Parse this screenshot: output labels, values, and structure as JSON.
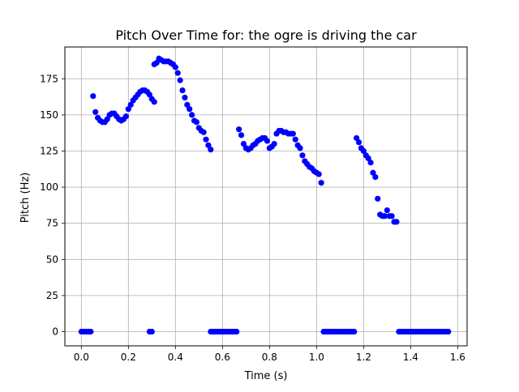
{
  "chart_data": {
    "type": "scatter",
    "title": "Pitch Over Time for: the ogre is driving the car",
    "xlabel": "Time (s)",
    "ylabel": "Pitch (Hz)",
    "xlim": [
      -0.07,
      1.64
    ],
    "ylim": [
      -9.8,
      197
    ],
    "xticks": [
      0.0,
      0.2,
      0.4,
      0.6,
      0.8,
      1.0,
      1.2,
      1.4,
      1.6
    ],
    "xtick_labels": [
      "0.0",
      "0.2",
      "0.4",
      "0.6",
      "0.8",
      "1.0",
      "1.2",
      "1.4",
      "1.6"
    ],
    "yticks": [
      0,
      25,
      50,
      75,
      100,
      125,
      150,
      175
    ],
    "ytick_labels": [
      "0",
      "25",
      "50",
      "75",
      "100",
      "125",
      "150",
      "175"
    ],
    "grid": true,
    "marker_color": "#0000ff",
    "series": [
      {
        "points": [
          [
            0.0,
            0
          ],
          [
            0.01,
            0
          ],
          [
            0.02,
            0
          ],
          [
            0.03,
            0
          ],
          [
            0.04,
            0
          ],
          [
            0.05,
            163
          ],
          [
            0.06,
            152
          ],
          [
            0.07,
            148
          ],
          [
            0.08,
            146
          ],
          [
            0.09,
            145
          ],
          [
            0.1,
            145
          ],
          [
            0.11,
            147
          ],
          [
            0.12,
            150
          ],
          [
            0.13,
            151
          ],
          [
            0.14,
            151
          ],
          [
            0.15,
            149
          ],
          [
            0.16,
            147
          ],
          [
            0.17,
            146
          ],
          [
            0.18,
            147
          ],
          [
            0.19,
            149
          ],
          [
            0.2,
            154
          ],
          [
            0.21,
            157
          ],
          [
            0.22,
            160
          ],
          [
            0.23,
            162
          ],
          [
            0.24,
            164
          ],
          [
            0.25,
            166
          ],
          [
            0.26,
            167
          ],
          [
            0.27,
            167
          ],
          [
            0.28,
            166
          ],
          [
            0.29,
            164
          ],
          [
            0.3,
            161
          ],
          [
            0.31,
            159
          ],
          [
            0.29,
            0
          ],
          [
            0.3,
            0
          ],
          [
            0.31,
            185
          ],
          [
            0.32,
            186
          ],
          [
            0.33,
            189
          ],
          [
            0.34,
            188
          ],
          [
            0.35,
            187
          ],
          [
            0.36,
            187
          ],
          [
            0.37,
            187
          ],
          [
            0.38,
            186
          ],
          [
            0.39,
            185
          ],
          [
            0.4,
            183
          ],
          [
            0.41,
            179
          ],
          [
            0.42,
            174
          ],
          [
            0.43,
            167
          ],
          [
            0.44,
            162
          ],
          [
            0.45,
            157
          ],
          [
            0.46,
            154
          ],
          [
            0.47,
            150
          ],
          [
            0.48,
            146
          ],
          [
            0.49,
            145
          ],
          [
            0.5,
            141
          ],
          [
            0.51,
            139
          ],
          [
            0.52,
            138
          ],
          [
            0.53,
            133
          ],
          [
            0.54,
            129
          ],
          [
            0.55,
            126
          ],
          [
            0.55,
            0
          ],
          [
            0.56,
            0
          ],
          [
            0.57,
            0
          ],
          [
            0.58,
            0
          ],
          [
            0.59,
            0
          ],
          [
            0.6,
            0
          ],
          [
            0.61,
            0
          ],
          [
            0.62,
            0
          ],
          [
            0.63,
            0
          ],
          [
            0.64,
            0
          ],
          [
            0.65,
            0
          ],
          [
            0.66,
            0
          ],
          [
            0.67,
            140
          ],
          [
            0.68,
            136
          ],
          [
            0.69,
            130
          ],
          [
            0.7,
            127
          ],
          [
            0.71,
            126
          ],
          [
            0.72,
            127
          ],
          [
            0.73,
            129
          ],
          [
            0.74,
            130
          ],
          [
            0.75,
            132
          ],
          [
            0.76,
            133
          ],
          [
            0.77,
            134
          ],
          [
            0.78,
            134
          ],
          [
            0.79,
            132
          ],
          [
            0.8,
            127
          ],
          [
            0.81,
            128
          ],
          [
            0.82,
            130
          ],
          [
            0.83,
            137
          ],
          [
            0.84,
            139
          ],
          [
            0.85,
            139
          ],
          [
            0.86,
            138
          ],
          [
            0.87,
            138
          ],
          [
            0.88,
            137
          ],
          [
            0.89,
            137
          ],
          [
            0.9,
            137
          ],
          [
            0.91,
            133
          ],
          [
            0.92,
            129
          ],
          [
            0.93,
            127
          ],
          [
            0.94,
            122
          ],
          [
            0.95,
            118
          ],
          [
            0.96,
            116
          ],
          [
            0.97,
            114
          ],
          [
            0.98,
            113
          ],
          [
            0.99,
            111
          ],
          [
            1.0,
            110
          ],
          [
            1.01,
            109
          ],
          [
            1.02,
            103
          ],
          [
            1.03,
            0
          ],
          [
            1.04,
            0
          ],
          [
            1.05,
            0
          ],
          [
            1.06,
            0
          ],
          [
            1.07,
            0
          ],
          [
            1.08,
            0
          ],
          [
            1.09,
            0
          ],
          [
            1.1,
            0
          ],
          [
            1.11,
            0
          ],
          [
            1.12,
            0
          ],
          [
            1.13,
            0
          ],
          [
            1.14,
            0
          ],
          [
            1.15,
            0
          ],
          [
            1.16,
            0
          ],
          [
            1.17,
            134
          ],
          [
            1.18,
            131
          ],
          [
            1.19,
            127
          ],
          [
            1.2,
            125
          ],
          [
            1.21,
            122
          ],
          [
            1.22,
            120
          ],
          [
            1.23,
            117
          ],
          [
            1.24,
            110
          ],
          [
            1.25,
            107
          ],
          [
            1.26,
            92
          ],
          [
            1.27,
            81
          ],
          [
            1.28,
            80
          ],
          [
            1.29,
            80
          ],
          [
            1.3,
            84
          ],
          [
            1.31,
            80
          ],
          [
            1.32,
            80
          ],
          [
            1.33,
            76
          ],
          [
            1.34,
            76
          ],
          [
            1.35,
            0
          ],
          [
            1.36,
            0
          ],
          [
            1.37,
            0
          ],
          [
            1.38,
            0
          ],
          [
            1.39,
            0
          ],
          [
            1.4,
            0
          ],
          [
            1.41,
            0
          ],
          [
            1.42,
            0
          ],
          [
            1.43,
            0
          ],
          [
            1.44,
            0
          ],
          [
            1.45,
            0
          ],
          [
            1.46,
            0
          ],
          [
            1.47,
            0
          ],
          [
            1.48,
            0
          ],
          [
            1.49,
            0
          ],
          [
            1.5,
            0
          ],
          [
            1.51,
            0
          ],
          [
            1.52,
            0
          ],
          [
            1.53,
            0
          ],
          [
            1.54,
            0
          ],
          [
            1.55,
            0
          ],
          [
            1.56,
            0
          ]
        ]
      }
    ]
  }
}
